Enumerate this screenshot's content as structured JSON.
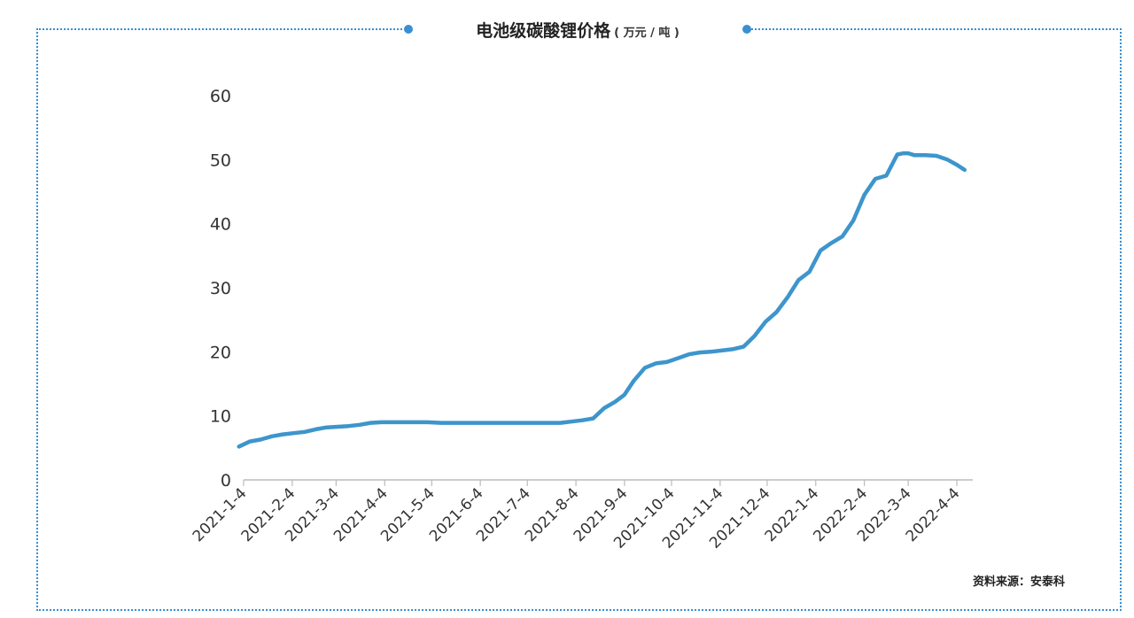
{
  "colors": {
    "line": "#3d95cc",
    "border": "#3a8fd0",
    "axis": "#bbbbbb",
    "text": "#333333"
  },
  "chart_data": {
    "type": "line",
    "title": "电池级碳酸锂价格",
    "title_unit": "( 万元 / 吨 )",
    "xlabel": "",
    "ylabel": "",
    "ylim": [
      0,
      60
    ],
    "yticks": [
      0,
      10,
      20,
      30,
      40,
      50,
      60
    ],
    "grid": false,
    "xticks": [
      "2021-1-4",
      "2021-2-4",
      "2021-3-4",
      "2021-4-4",
      "2021-5-4",
      "2021-6-4",
      "2021-7-4",
      "2021-8-4",
      "2021-9-4",
      "2021-10-4",
      "2021-11-4",
      "2021-12-4",
      "2022-1-4",
      "2022-2-4",
      "2022-3-4",
      "2022-4-4"
    ],
    "x": [
      "2021-01-01",
      "2021-01-08",
      "2021-01-15",
      "2021-01-22",
      "2021-01-29",
      "2021-02-05",
      "2021-02-12",
      "2021-02-19",
      "2021-02-26",
      "2021-03-05",
      "2021-03-12",
      "2021-03-19",
      "2021-03-26",
      "2021-04-02",
      "2021-04-10",
      "2021-04-20",
      "2021-05-01",
      "2021-05-10",
      "2021-05-20",
      "2021-06-01",
      "2021-06-15",
      "2021-07-01",
      "2021-07-15",
      "2021-07-25",
      "2021-08-01",
      "2021-08-08",
      "2021-08-15",
      "2021-08-22",
      "2021-08-29",
      "2021-09-04",
      "2021-09-10",
      "2021-09-17",
      "2021-09-24",
      "2021-10-01",
      "2021-10-08",
      "2021-10-15",
      "2021-10-22",
      "2021-10-29",
      "2021-11-05",
      "2021-11-12",
      "2021-11-19",
      "2021-11-26",
      "2021-12-03",
      "2021-12-10",
      "2021-12-17",
      "2021-12-24",
      "2021-12-31",
      "2022-01-07",
      "2022-01-14",
      "2022-01-21",
      "2022-01-28",
      "2022-02-04",
      "2022-02-11",
      "2022-02-18",
      "2022-02-25",
      "2022-03-01",
      "2022-03-04",
      "2022-03-08",
      "2022-03-15",
      "2022-03-22",
      "2022-03-29",
      "2022-04-04",
      "2022-04-09"
    ],
    "series": [
      {
        "name": "",
        "values": [
          5.2,
          6.0,
          6.3,
          6.8,
          7.1,
          7.3,
          7.5,
          7.9,
          8.2,
          8.3,
          8.4,
          8.6,
          8.9,
          9.0,
          9.0,
          9.0,
          9.0,
          8.9,
          8.9,
          8.9,
          8.9,
          8.9,
          8.9,
          8.9,
          9.1,
          9.3,
          9.6,
          11.2,
          12.2,
          13.3,
          15.5,
          17.5,
          18.2,
          18.4,
          19.0,
          19.6,
          19.9,
          20.0,
          20.2,
          20.4,
          20.8,
          22.5,
          24.7,
          26.2,
          28.5,
          31.2,
          32.5,
          35.8,
          37.0,
          38.0,
          40.5,
          44.5,
          47.0,
          47.5,
          50.8,
          51.0,
          51.0,
          50.7,
          50.7,
          50.6,
          50.0,
          49.2,
          48.4
        ]
      }
    ]
  },
  "source": "资料来源：安泰科"
}
